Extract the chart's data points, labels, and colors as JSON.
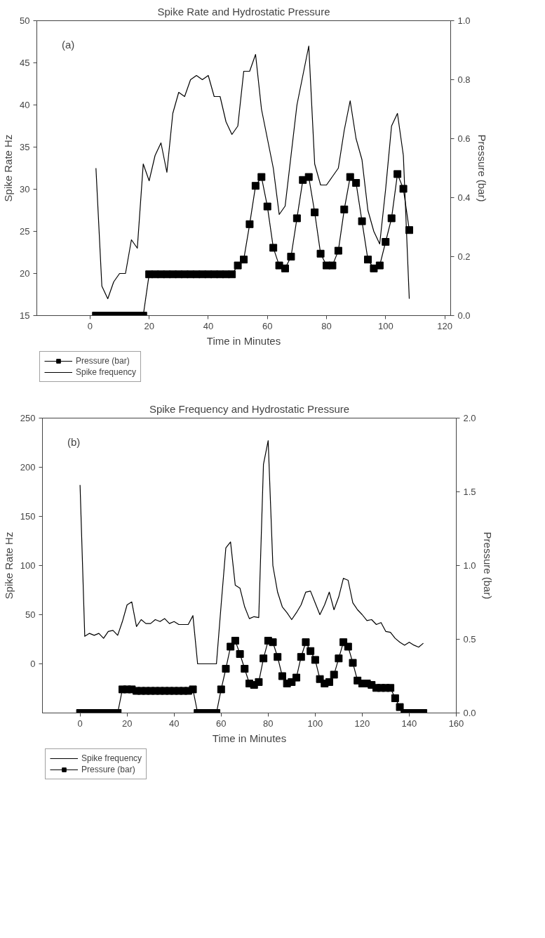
{
  "chart_data": [
    {
      "type": "line",
      "title": "Spike Rate and Hydrostatic Pressure",
      "xlabel": "Time in Minutes",
      "ylabel": "Spike Rate Hz",
      "y2label": "Pressure (bar)",
      "annotations": [
        "(a)"
      ],
      "legend": "bottom left",
      "grid": false,
      "xlim": [
        -18,
        122
      ],
      "xticks": [
        0,
        20,
        40,
        60,
        80,
        100,
        120
      ],
      "ylim": [
        15,
        50
      ],
      "yticks": [
        15,
        20,
        25,
        30,
        35,
        40,
        45,
        50
      ],
      "y2lim": [
        0,
        1
      ],
      "y2ticks": [
        {
          "value": 0,
          "label": "0.0"
        },
        {
          "value": 0.2,
          "label": "0.2"
        },
        {
          "value": 0.4,
          "label": "0.4"
        },
        {
          "value": 0.6,
          "label": "0.6"
        },
        {
          "value": 0.8,
          "label": "0.8"
        },
        {
          "value": 1,
          "label": "1.0"
        }
      ],
      "series": [
        {
          "name": "Pressure (bar)",
          "color": "#000000",
          "axis": "y2",
          "marker": "square",
          "x": [
            2,
            4,
            6,
            8,
            10,
            12,
            14,
            16,
            18,
            20,
            22,
            24,
            26,
            28,
            30,
            32,
            34,
            36,
            38,
            40,
            42,
            44,
            46,
            48,
            50,
            52,
            54,
            56,
            58,
            60,
            62,
            64,
            66,
            68,
            70,
            72,
            74,
            76,
            78,
            80,
            82,
            84,
            86,
            88,
            90,
            92,
            94,
            96,
            98,
            100,
            102,
            104,
            106,
            108
          ],
          "values": [
            0,
            0,
            0,
            0,
            0,
            0,
            0,
            0,
            0,
            0.14,
            0.14,
            0.14,
            0.14,
            0.14,
            0.14,
            0.14,
            0.14,
            0.14,
            0.14,
            0.14,
            0.14,
            0.14,
            0.14,
            0.14,
            0.17,
            0.19,
            0.31,
            0.44,
            0.47,
            0.37,
            0.23,
            0.17,
            0.16,
            0.2,
            0.33,
            0.46,
            0.47,
            0.35,
            0.21,
            0.17,
            0.17,
            0.22,
            0.36,
            0.47,
            0.45,
            0.32,
            0.19,
            0.16,
            0.17,
            0.25,
            0.33,
            0.48,
            0.43,
            0.29
          ]
        },
        {
          "name": "Spike frequency",
          "color": "#000000",
          "marker": "none",
          "x": [
            2,
            4,
            6,
            8,
            10,
            12,
            14,
            16,
            18,
            20,
            22,
            24,
            26,
            28,
            30,
            32,
            34,
            36,
            38,
            40,
            42,
            44,
            46,
            48,
            50,
            52,
            54,
            56,
            58,
            60,
            62,
            64,
            66,
            68,
            70,
            72,
            74,
            76,
            78,
            80,
            82,
            84,
            86,
            88,
            90,
            92,
            94,
            96,
            98,
            100,
            102,
            104,
            106,
            108
          ],
          "values": [
            32.5,
            18.5,
            17,
            19,
            20,
            20,
            24,
            23,
            33,
            31,
            34,
            35.5,
            32,
            39,
            41.5,
            41,
            43,
            43.5,
            43,
            43.5,
            41,
            41,
            38,
            36.5,
            37.5,
            44,
            44,
            46,
            39.5,
            36,
            32.5,
            27,
            28,
            34,
            40,
            43.5,
            47,
            33,
            30.5,
            30.5,
            31.5,
            32.5,
            37,
            40.5,
            36,
            33.5,
            27.5,
            25,
            23.5,
            30,
            37.5,
            39,
            34,
            17
          ]
        }
      ]
    },
    {
      "type": "line",
      "title": "Spike Frequency and Hydrostatic Pressure",
      "xlabel": "Time in Minutes",
      "ylabel": "Spike Rate Hz",
      "y2label": "Pressure (bar)",
      "annotations": [
        "(b)"
      ],
      "legend": "bottom left",
      "grid": false,
      "xlim": [
        -16,
        160
      ],
      "xticks": [
        0,
        20,
        40,
        60,
        80,
        100,
        120,
        140,
        160
      ],
      "ylim": [
        -50,
        250
      ],
      "yticks": [
        0,
        50,
        100,
        150,
        200,
        250
      ],
      "y2lim": [
        0,
        2
      ],
      "y2ticks": [
        {
          "value": 0,
          "label": "0.0"
        },
        {
          "value": 0.5,
          "label": "0.5"
        },
        {
          "value": 1,
          "label": "1.0"
        },
        {
          "value": 1.5,
          "label": "1.5"
        },
        {
          "value": 2,
          "label": "2.0"
        }
      ],
      "series": [
        {
          "name": "Spike frequency",
          "color": "#000000",
          "marker": "none",
          "x": [
            0,
            2,
            4,
            6,
            8,
            10,
            12,
            14,
            16,
            18,
            20,
            22,
            24,
            26,
            28,
            30,
            32,
            34,
            36,
            38,
            40,
            42,
            44,
            46,
            48,
            50,
            52,
            54,
            56,
            58,
            60,
            62,
            64,
            66,
            68,
            70,
            72,
            74,
            76,
            78,
            80,
            82,
            84,
            86,
            88,
            90,
            92,
            94,
            96,
            98,
            100,
            102,
            104,
            106,
            108,
            110,
            112,
            114,
            116,
            118,
            120,
            122,
            124,
            126,
            128,
            130,
            132,
            134,
            136,
            138,
            140,
            142,
            144,
            146
          ],
          "values": [
            182,
            28,
            31,
            29,
            31,
            26,
            33,
            34,
            29,
            43,
            60,
            63,
            38,
            45,
            41,
            41,
            45,
            43,
            46,
            41,
            43,
            40,
            40,
            40,
            49,
            0,
            0,
            0,
            0,
            0,
            60,
            118,
            124,
            80,
            77,
            58,
            46,
            48,
            47,
            203,
            227,
            100,
            73,
            58,
            52,
            45,
            52,
            60,
            73,
            74,
            62,
            50,
            60,
            73,
            55,
            68,
            87,
            85,
            62,
            55,
            50,
            44,
            45,
            40,
            42,
            33,
            32,
            26,
            22,
            19,
            22,
            19,
            17,
            21
          ]
        },
        {
          "name": "Pressure (bar)",
          "color": "#000000",
          "axis": "y2",
          "marker": "square",
          "x": [
            0,
            2,
            4,
            6,
            8,
            10,
            12,
            14,
            16,
            18,
            20,
            22,
            24,
            26,
            28,
            30,
            32,
            34,
            36,
            38,
            40,
            42,
            44,
            46,
            48,
            50,
            52,
            54,
            56,
            58,
            60,
            62,
            64,
            66,
            68,
            70,
            72,
            74,
            76,
            78,
            80,
            82,
            84,
            86,
            88,
            90,
            92,
            94,
            96,
            98,
            100,
            102,
            104,
            106,
            108,
            110,
            112,
            114,
            116,
            118,
            120,
            122,
            124,
            126,
            128,
            130,
            132,
            134,
            136,
            138,
            140,
            142,
            144,
            146
          ],
          "values": [
            0,
            0,
            0,
            0,
            0,
            0,
            0,
            0,
            0,
            0.16,
            0.16,
            0.16,
            0.15,
            0.15,
            0.15,
            0.15,
            0.15,
            0.15,
            0.15,
            0.15,
            0.15,
            0.15,
            0.15,
            0.15,
            0.16,
            0,
            0,
            0,
            0,
            0,
            0.16,
            0.3,
            0.45,
            0.49,
            0.4,
            0.3,
            0.2,
            0.19,
            0.21,
            0.37,
            0.49,
            0.48,
            0.38,
            0.25,
            0.2,
            0.21,
            0.24,
            0.38,
            0.48,
            0.42,
            0.36,
            0.23,
            0.2,
            0.21,
            0.26,
            0.37,
            0.48,
            0.45,
            0.34,
            0.22,
            0.2,
            0.2,
            0.19,
            0.17,
            0.17,
            0.17,
            0.17,
            0.1,
            0.04,
            0,
            0,
            0,
            0,
            0
          ]
        }
      ]
    }
  ]
}
